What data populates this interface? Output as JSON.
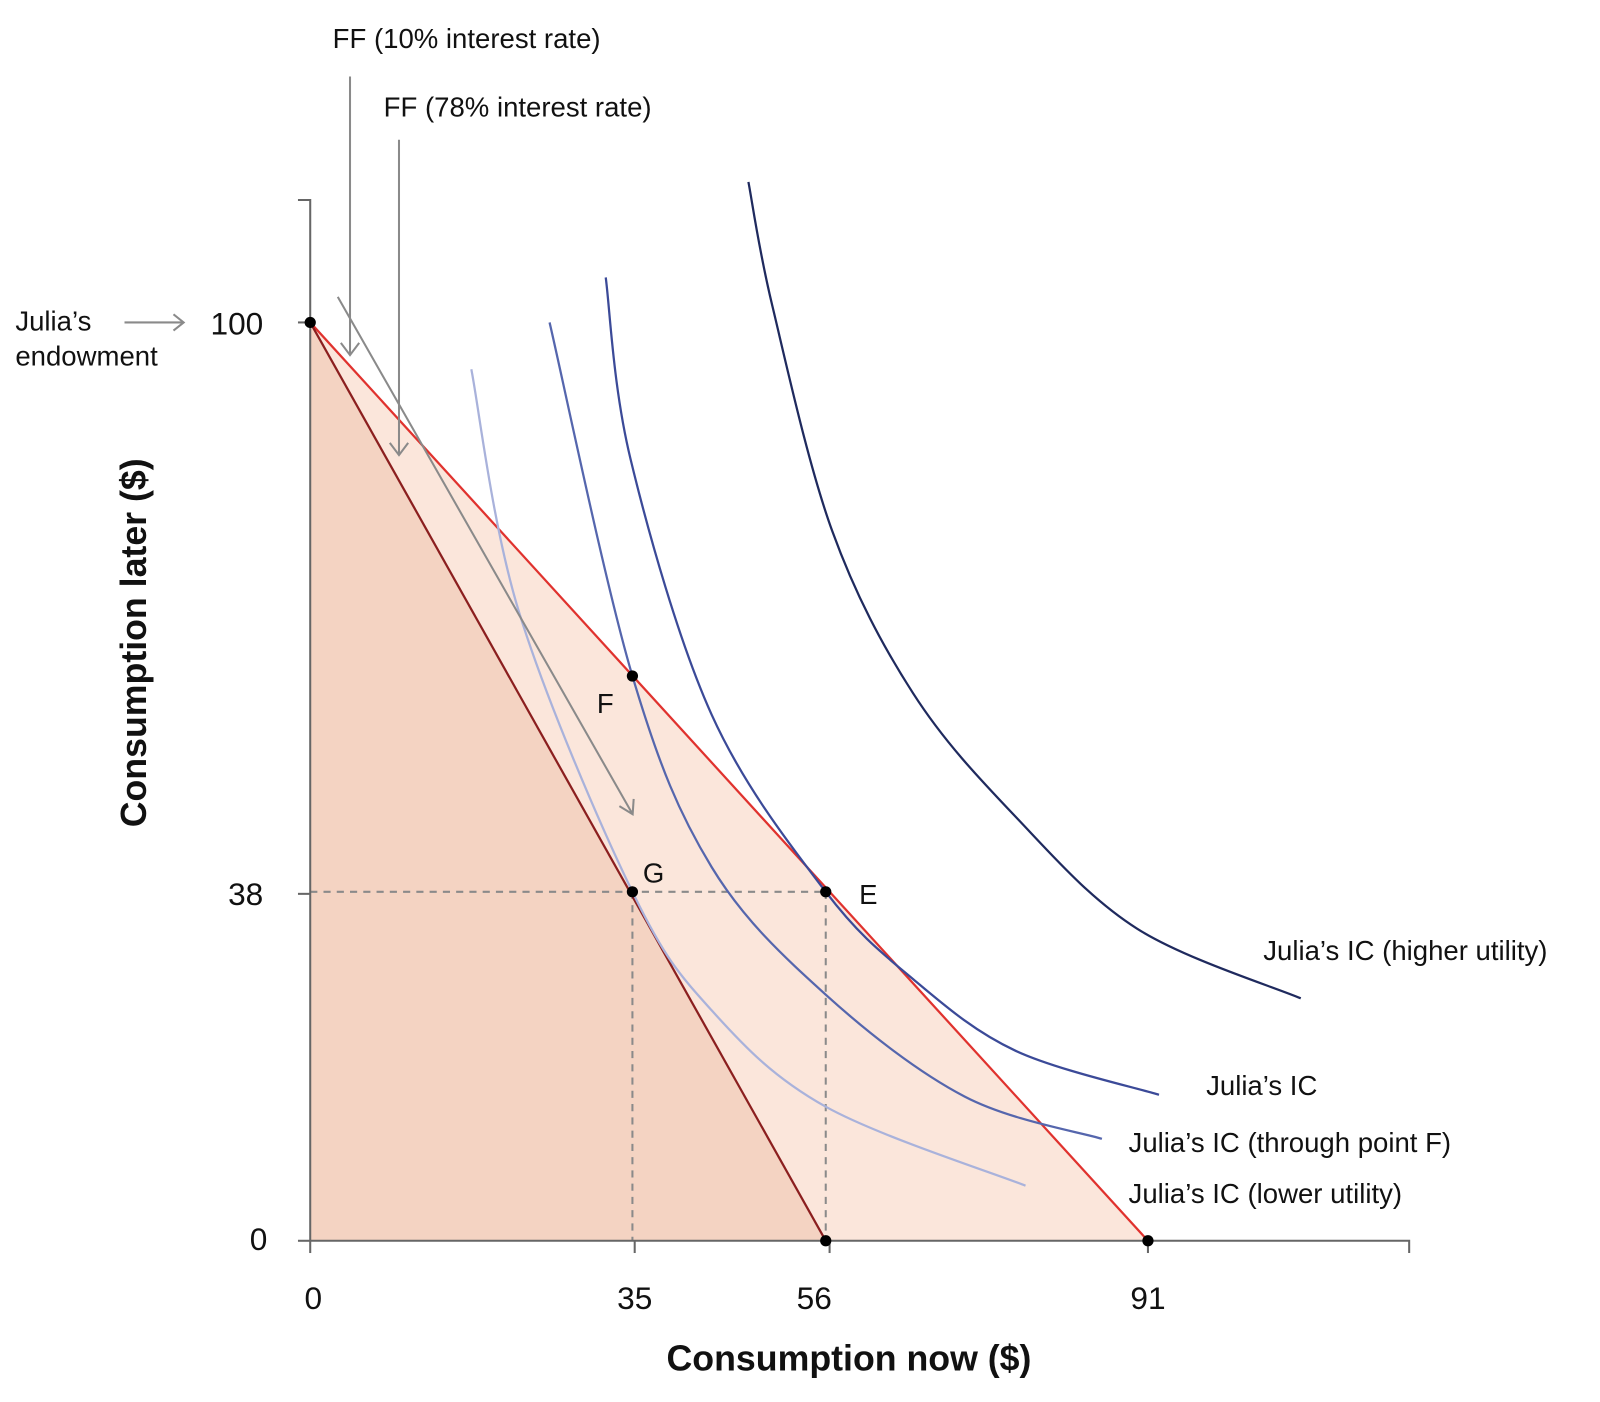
{
  "chart_data": {
    "type": "line",
    "xlabel": "Consumption now ($)",
    "ylabel": "Consumption later ($)",
    "x_ticks": [
      "0",
      "35",
      "56",
      "91"
    ],
    "y_ticks": [
      "0",
      "38",
      "100"
    ],
    "xlim": [
      0,
      118
    ],
    "ylim": [
      0,
      113
    ],
    "feasible_frontiers": [
      {
        "name": "FF (10% interest rate)",
        "points": [
          [
            0,
            100
          ],
          [
            91,
            0
          ]
        ],
        "color": "#e0322e",
        "fill": "#fbe6db"
      },
      {
        "name": "FF (78% interest rate)",
        "points": [
          [
            0,
            100
          ],
          [
            56,
            0
          ]
        ],
        "color": "#8b1f1f",
        "fill": "#f4d3c2"
      }
    ],
    "indifference_curves": [
      {
        "name": "Julia’s IC (higher utility)",
        "color": "#1f2a5e",
        "points": [
          [
            47.6,
            115.3
          ],
          [
            50.2,
            101.8
          ],
          [
            56.7,
            77.3
          ],
          [
            65.5,
            59.6
          ],
          [
            76.6,
            46.2
          ],
          [
            89.8,
            34.0
          ],
          [
            107.6,
            26.4
          ]
        ]
      },
      {
        "name": "Julia’s IC",
        "color": "#3b4a98",
        "points": [
          [
            32.1,
            104.9
          ],
          [
            34.8,
            85.1
          ],
          [
            43.6,
            57.3
          ],
          [
            56,
            38
          ],
          [
            65.6,
            28.4
          ],
          [
            76.6,
            20.7
          ],
          [
            92.2,
            15.9
          ]
        ]
      },
      {
        "name": "Julia’s IC (through point F)",
        "color": "#5566ad",
        "points": [
          [
            26,
            100
          ],
          [
            35,
            61.5
          ],
          [
            43.6,
            40.7
          ],
          [
            56,
            26.8
          ],
          [
            71.1,
            15.7
          ],
          [
            86,
            11.1
          ]
        ]
      },
      {
        "name": "Julia’s IC (lower utility)",
        "color": "#a9b2db",
        "points": [
          [
            17.5,
            94.9
          ],
          [
            22.7,
            68.4
          ],
          [
            35,
            38
          ],
          [
            43.6,
            25.1
          ],
          [
            56,
            14.6
          ],
          [
            77.7,
            6
          ]
        ]
      }
    ],
    "points": [
      {
        "label": "",
        "x": 0,
        "y": 100
      },
      {
        "label": "F",
        "x": 35,
        "y": 61.5
      },
      {
        "label": "G",
        "x": 35,
        "y": 38
      },
      {
        "label": "E",
        "x": 56,
        "y": 38
      },
      {
        "label": "",
        "x": 56,
        "y": 0
      },
      {
        "label": "",
        "x": 91,
        "y": 0
      }
    ],
    "annotations": {
      "endowment_line1": "Julia’s",
      "endowment_line2": "endowment",
      "ff10": "FF (10% interest rate)",
      "ff78": "FF (78% interest rate)"
    },
    "grid": false
  }
}
